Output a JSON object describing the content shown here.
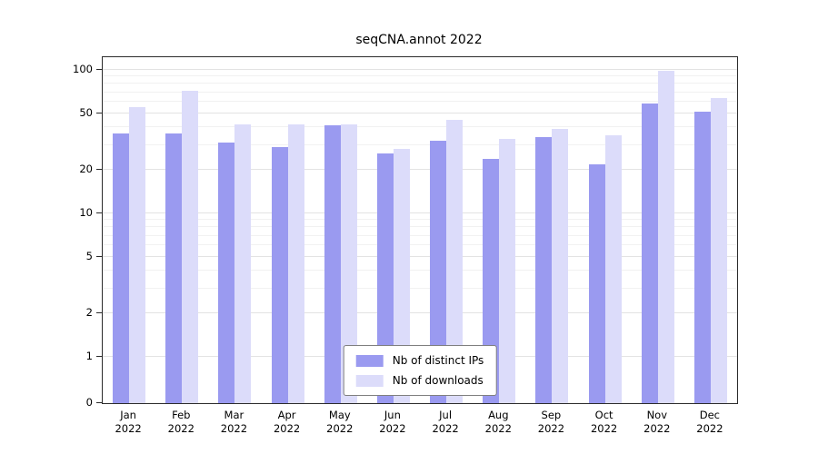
{
  "title": "seqCNA.annot 2022",
  "chart_data": {
    "type": "bar",
    "title": "seqCNA.annot 2022",
    "xlabel": "",
    "ylabel": "",
    "yscale": "log-like",
    "grid": true,
    "legend_position": "lower center",
    "year": "2022",
    "categories": [
      "Jan",
      "Feb",
      "Mar",
      "Apr",
      "May",
      "Jun",
      "Jul",
      "Aug",
      "Sep",
      "Oct",
      "Nov",
      "Dec"
    ],
    "yticks": [
      0,
      1,
      2,
      5,
      10,
      20,
      50,
      100
    ],
    "ylim": [
      0,
      105
    ],
    "series": [
      {
        "name": "Nb of distinct IPs",
        "color": "#9a9af0",
        "values": [
          36,
          36,
          31,
          29,
          41,
          26,
          32,
          24,
          34,
          22,
          58,
          51
        ]
      },
      {
        "name": "Nb of downloads",
        "color": "#dcdcfa",
        "values": [
          55,
          72,
          42,
          42,
          42,
          28,
          45,
          33,
          39,
          35,
          98,
          64
        ]
      }
    ]
  }
}
